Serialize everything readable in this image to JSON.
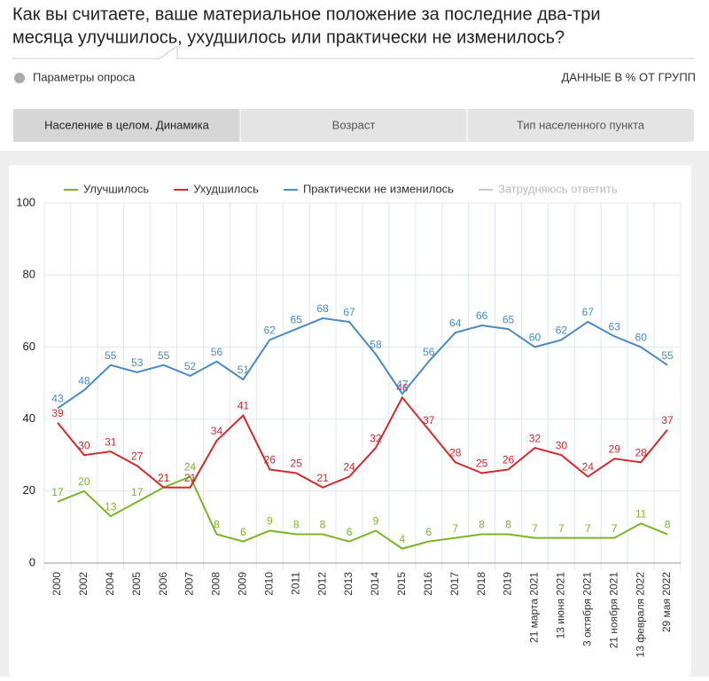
{
  "header": {
    "title_line1": "Как вы считаете, ваше материальное положение за последние два-три",
    "title_line2": "месяца улучшилось, ухудшилось или практически не изменилось?",
    "params": "Параметры опроса",
    "units": "ДАННЫЕ В % ОТ ГРУПП"
  },
  "tabs": [
    "Население в целом. Динамика",
    "Возраст",
    "Тип населенного пункта"
  ],
  "chart_data": {
    "type": "line",
    "categories": [
      "2000",
      "2002",
      "2004",
      "2005",
      "2006",
      "2007",
      "2008",
      "2009",
      "2010",
      "2011",
      "2012",
      "2013",
      "2014",
      "2015",
      "2016",
      "2017",
      "2018",
      "2019",
      "21 марта 2021",
      "13 июня 2021",
      "3 октября 2021",
      "21 ноября 2021",
      "13 февраля 2022",
      "29 мая 2022"
    ],
    "series": [
      {
        "name": "Улучшилось",
        "color": "#7cb526",
        "values": [
          17,
          20,
          13,
          17,
          21,
          24,
          8,
          6,
          9,
          8,
          8,
          6,
          9,
          4,
          6,
          7,
          8,
          8,
          7,
          7,
          7,
          7,
          11,
          8
        ]
      },
      {
        "name": "Ухудшилось",
        "color": "#d12a2f",
        "values": [
          39,
          30,
          31,
          27,
          21,
          21,
          34,
          41,
          26,
          25,
          21,
          24,
          32,
          46,
          37,
          28,
          25,
          26,
          32,
          30,
          24,
          29,
          28,
          37
        ]
      },
      {
        "name": "Практически не изменилось",
        "color": "#4a8ac4",
        "values": [
          43,
          48,
          55,
          53,
          55,
          52,
          56,
          51,
          62,
          65,
          68,
          67,
          58,
          47,
          56,
          64,
          66,
          65,
          60,
          62,
          67,
          63,
          60,
          55
        ]
      }
    ],
    "legend_inactive": "Затрудняюсь ответить",
    "ylim": [
      0,
      100
    ],
    "yticks": [
      0,
      20,
      40,
      60,
      80,
      100
    ],
    "grid": true
  }
}
